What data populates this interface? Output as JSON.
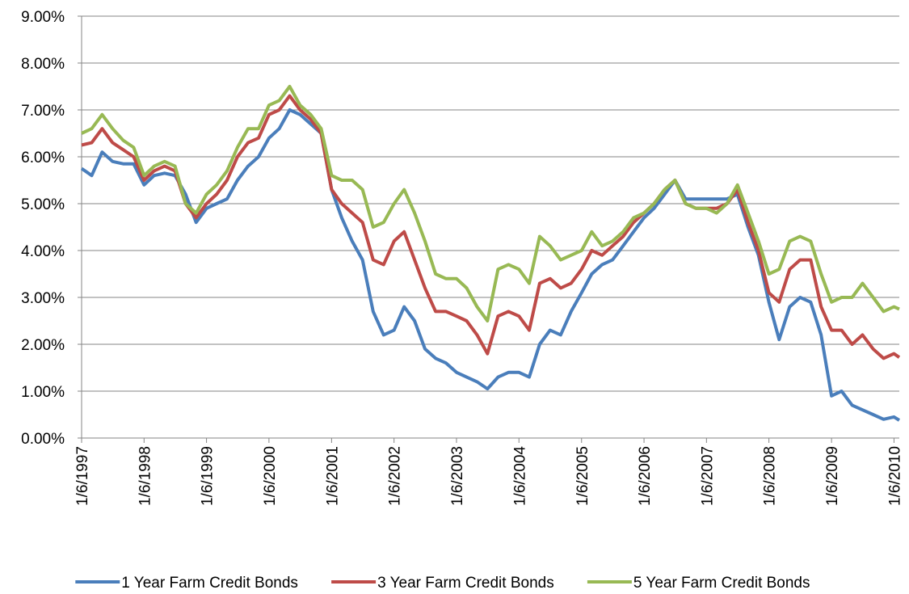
{
  "chart_data": {
    "type": "line",
    "x": [
      "1/6/1997",
      "3/6/1997",
      "5/6/1997",
      "7/6/1997",
      "9/6/1997",
      "11/6/1997",
      "1/6/1998",
      "3/6/1998",
      "5/6/1998",
      "7/6/1998",
      "9/6/1998",
      "11/6/1998",
      "1/6/1999",
      "3/6/1999",
      "5/6/1999",
      "7/6/1999",
      "9/6/1999",
      "11/6/1999",
      "1/6/2000",
      "3/6/2000",
      "5/6/2000",
      "7/6/2000",
      "9/6/2000",
      "11/6/2000",
      "1/6/2001",
      "3/6/2001",
      "5/6/2001",
      "7/6/2001",
      "9/6/2001",
      "11/6/2001",
      "1/6/2002",
      "3/6/2002",
      "5/6/2002",
      "7/6/2002",
      "9/6/2002",
      "11/6/2002",
      "1/6/2003",
      "3/6/2003",
      "5/6/2003",
      "7/6/2003",
      "9/6/2003",
      "11/6/2003",
      "1/6/2004",
      "3/6/2004",
      "5/6/2004",
      "7/6/2004",
      "9/6/2004",
      "11/6/2004",
      "1/6/2005",
      "3/6/2005",
      "5/6/2005",
      "7/6/2005",
      "9/6/2005",
      "11/6/2005",
      "1/6/2006",
      "3/6/2006",
      "5/6/2006",
      "7/6/2006",
      "9/6/2006",
      "11/6/2006",
      "1/6/2007",
      "3/6/2007",
      "5/6/2007",
      "7/6/2007",
      "9/6/2007",
      "11/6/2007",
      "1/6/2008",
      "3/6/2008",
      "5/6/2008",
      "7/6/2008",
      "9/6/2008",
      "11/6/2008",
      "1/6/2009",
      "3/6/2009",
      "5/6/2009",
      "7/6/2009",
      "9/6/2009",
      "11/6/2009",
      "1/6/2010",
      "2/6/2010"
    ],
    "series": [
      {
        "name": "1 Year Farm Credit Bonds",
        "color": "#4a7ebb",
        "values": [
          5.75,
          5.6,
          6.1,
          5.9,
          5.85,
          5.85,
          5.4,
          5.6,
          5.65,
          5.6,
          5.2,
          4.6,
          4.9,
          5.0,
          5.1,
          5.5,
          5.8,
          6.0,
          6.4,
          6.6,
          7.0,
          6.9,
          6.7,
          6.5,
          5.3,
          4.7,
          4.2,
          3.8,
          2.7,
          2.2,
          2.3,
          2.8,
          2.5,
          1.9,
          1.7,
          1.6,
          1.4,
          1.3,
          1.2,
          1.05,
          1.3,
          1.4,
          1.4,
          1.3,
          2.0,
          2.3,
          2.2,
          2.7,
          3.1,
          3.5,
          3.7,
          3.8,
          4.1,
          4.4,
          4.7,
          4.9,
          5.2,
          5.5,
          5.1,
          5.1,
          5.1,
          5.1,
          5.1,
          5.2,
          4.5,
          3.9,
          2.9,
          2.1,
          2.8,
          3.0,
          2.9,
          2.2,
          0.9,
          1.0,
          0.7,
          0.6,
          0.5,
          0.4,
          0.45,
          0.38
        ]
      },
      {
        "name": "3 Year Farm Credit Bonds",
        "color": "#be4b48",
        "values": [
          6.25,
          6.3,
          6.6,
          6.3,
          6.15,
          6.0,
          5.5,
          5.7,
          5.8,
          5.7,
          5.0,
          4.7,
          5.0,
          5.2,
          5.5,
          6.0,
          6.3,
          6.4,
          6.9,
          7.0,
          7.3,
          7.0,
          6.8,
          6.5,
          5.3,
          5.0,
          4.8,
          4.6,
          3.8,
          3.7,
          4.2,
          4.4,
          3.8,
          3.2,
          2.7,
          2.7,
          2.6,
          2.5,
          2.2,
          1.8,
          2.6,
          2.7,
          2.6,
          2.3,
          3.3,
          3.4,
          3.2,
          3.3,
          3.6,
          4.0,
          3.9,
          4.1,
          4.3,
          4.6,
          4.8,
          5.0,
          5.3,
          5.5,
          5.0,
          4.9,
          4.9,
          4.9,
          5.0,
          5.3,
          4.6,
          4.0,
          3.1,
          2.9,
          3.6,
          3.8,
          3.8,
          2.8,
          2.3,
          2.3,
          2.0,
          2.2,
          1.9,
          1.7,
          1.8,
          1.72
        ]
      },
      {
        "name": "5 Year Farm Credit Bonds",
        "color": "#98b954",
        "values": [
          6.5,
          6.6,
          6.9,
          6.6,
          6.35,
          6.2,
          5.6,
          5.8,
          5.9,
          5.8,
          5.0,
          4.8,
          5.2,
          5.4,
          5.7,
          6.2,
          6.6,
          6.6,
          7.1,
          7.2,
          7.5,
          7.1,
          6.9,
          6.6,
          5.6,
          5.5,
          5.5,
          5.3,
          4.5,
          4.6,
          5.0,
          5.3,
          4.8,
          4.2,
          3.5,
          3.4,
          3.4,
          3.2,
          2.8,
          2.5,
          3.6,
          3.7,
          3.6,
          3.3,
          4.3,
          4.1,
          3.8,
          3.9,
          4.0,
          4.4,
          4.1,
          4.2,
          4.4,
          4.7,
          4.8,
          5.0,
          5.3,
          5.5,
          5.0,
          4.9,
          4.9,
          4.8,
          5.0,
          5.4,
          4.8,
          4.2,
          3.5,
          3.6,
          4.2,
          4.3,
          4.2,
          3.5,
          2.9,
          3.0,
          3.0,
          3.3,
          3.0,
          2.7,
          2.8,
          2.75
        ]
      }
    ],
    "xlim": [
      "1/6/1997",
      "2/6/2010"
    ],
    "xticks": [
      "1/6/1997",
      "1/6/1998",
      "1/6/1999",
      "1/6/2000",
      "1/6/2001",
      "1/6/2002",
      "1/6/2003",
      "1/6/2004",
      "1/6/2005",
      "1/6/2006",
      "1/6/2007",
      "1/6/2008",
      "1/6/2009",
      "1/6/2010"
    ],
    "ylim": [
      0,
      9
    ],
    "yticks": [
      {
        "value": 0,
        "label": "0.00%"
      },
      {
        "value": 1,
        "label": "1.00%"
      },
      {
        "value": 2,
        "label": "2.00%"
      },
      {
        "value": 3,
        "label": "3.00%"
      },
      {
        "value": 4,
        "label": "4.00%"
      },
      {
        "value": 5,
        "label": "5.00%"
      },
      {
        "value": 6,
        "label": "6.00%"
      },
      {
        "value": 7,
        "label": "7.00%"
      },
      {
        "value": 8,
        "label": "8.00%"
      },
      {
        "value": 9,
        "label": "9.00%"
      }
    ],
    "grid": true,
    "legend": "bottom"
  }
}
